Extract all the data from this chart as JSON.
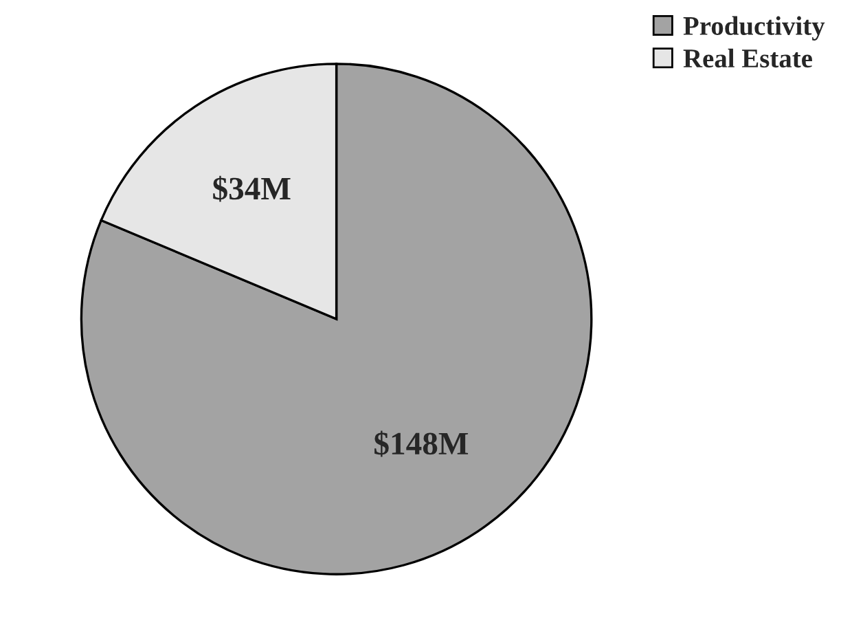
{
  "chart_data": {
    "type": "pie",
    "categories": [
      "Productivity",
      "Real Estate"
    ],
    "values": [
      148,
      34
    ],
    "colors": [
      "#a3a3a3",
      "#e6e6e6"
    ],
    "value_labels": [
      "$148M",
      "$34M"
    ],
    "legend": "top right"
  }
}
